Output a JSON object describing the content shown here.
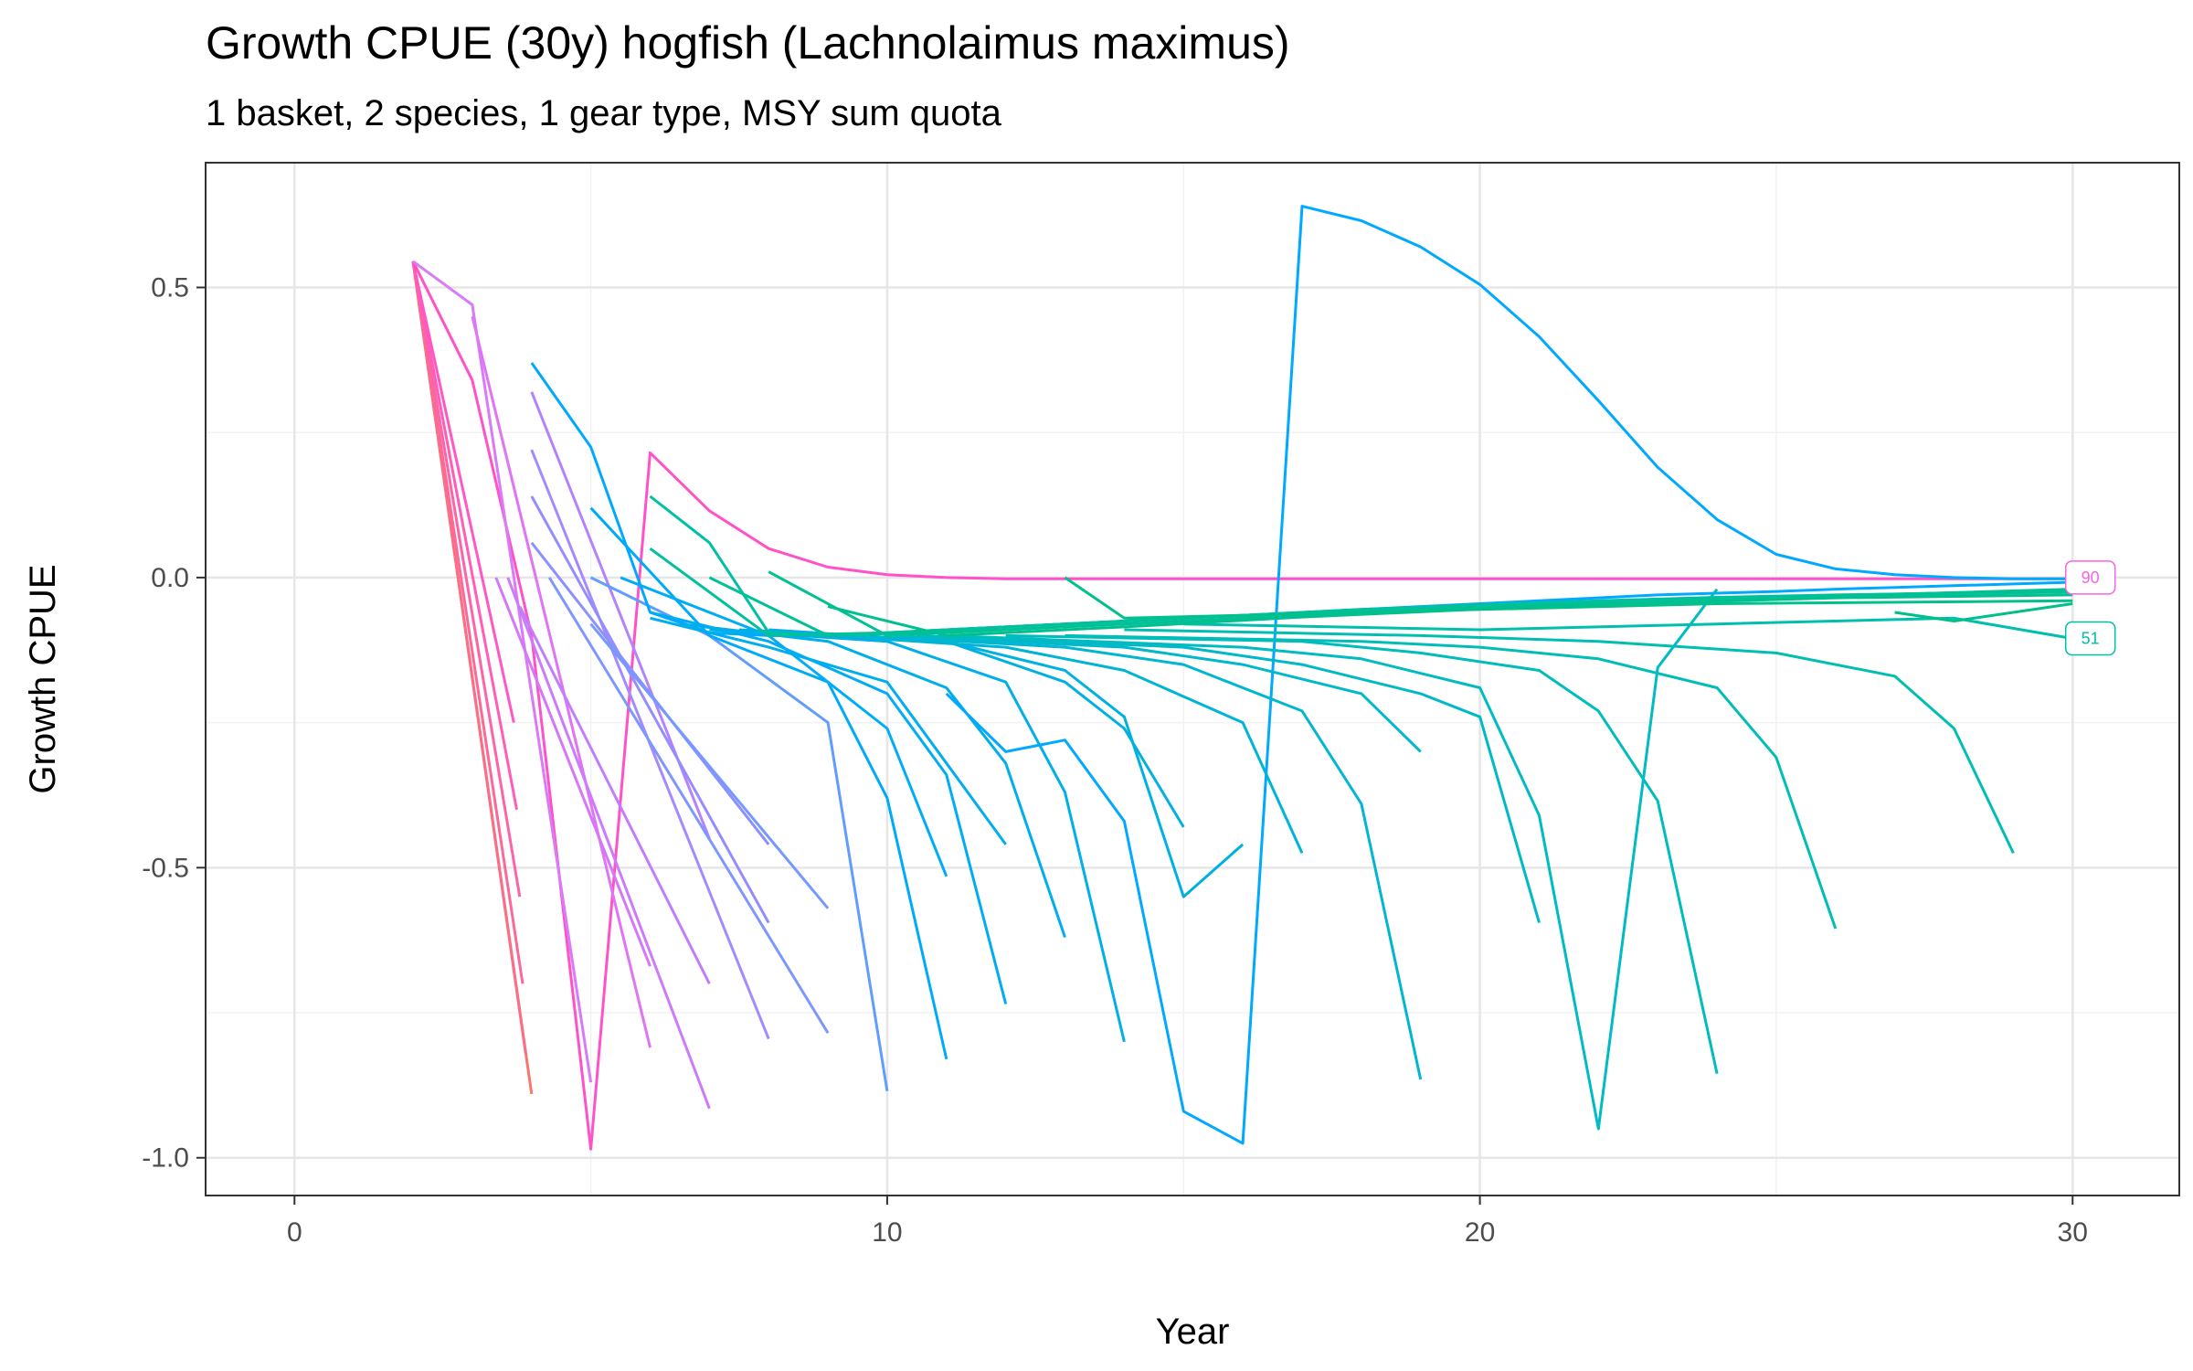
{
  "chart_data": {
    "type": "line",
    "title": "Growth CPUE (30y) hogfish (Lachnolaimus maximus)",
    "subtitle": "1 basket, 2 species, 1 gear type, MSY sum quota",
    "xlabel": "Year",
    "ylabel": "Growth CPUE",
    "xlim": [
      -1.5,
      31.8
    ],
    "ylim": [
      -1.065,
      0.715
    ],
    "x_ticks": [
      0,
      10,
      20,
      30
    ],
    "x_tick_labels": [
      "0",
      "10",
      "20",
      "30"
    ],
    "y_ticks": [
      -1.0,
      -0.5,
      0.0,
      0.5
    ],
    "y_tick_labels": [
      "-1.0",
      "-0.5",
      "0.0",
      "0.5"
    ],
    "grid": true,
    "legend": "none",
    "colors": {
      "pink": "#F564E3",
      "magenta": "#FF52C8",
      "red": "#F8766D",
      "violet": "#C77CFF",
      "periwinkle": "#8F8EFF",
      "blue": "#00A9FF",
      "cyan": "#00BCD8",
      "teal": "#00BFA5",
      "green": "#00C094"
    },
    "end_labels": [
      {
        "text": "90",
        "x": 30.3,
        "y": 0.0,
        "color": "#F564E3"
      },
      {
        "text": "51",
        "x": 30.3,
        "y": -0.105,
        "color": "#00BFA5"
      }
    ],
    "series": [
      {
        "color": "#F8766D",
        "x": [
          2,
          4
        ],
        "y": [
          0.545,
          -0.89
        ]
      },
      {
        "color": "#FA6E86",
        "x": [
          2,
          3.9
        ],
        "y": [
          0.545,
          -0.82
        ]
      },
      {
        "color": "#FB6A96",
        "x": [
          2,
          3.85
        ],
        "y": [
          0.545,
          -0.7
        ]
      },
      {
        "color": "#FD64A8",
        "x": [
          2,
          3.8
        ],
        "y": [
          0.545,
          -0.55
        ]
      },
      {
        "color": "#FF5DB8",
        "x": [
          2,
          3.75
        ],
        "y": [
          0.545,
          -0.4
        ]
      },
      {
        "color": "#FF58C4",
        "x": [
          2,
          3.7
        ],
        "y": [
          0.545,
          -0.25
        ]
      },
      {
        "color": "#FF52C8",
        "x": [
          2,
          3,
          4,
          5,
          6,
          7,
          8,
          9,
          10,
          11,
          12,
          30
        ],
        "y": [
          0.545,
          0.34,
          -0.1,
          -0.985,
          0.215,
          0.115,
          0.05,
          0.018,
          0.005,
          0.0,
          -0.002,
          -0.002
        ]
      },
      {
        "color": "#D97AF7",
        "x": [
          2,
          3,
          5
        ],
        "y": [
          0.545,
          0.47,
          -0.87
        ]
      },
      {
        "color": "#DF74F5",
        "x": [
          3,
          6
        ],
        "y": [
          0.45,
          -0.81
        ]
      },
      {
        "color": "#D478F8",
        "x": [
          3.4,
          6
        ],
        "y": [
          0.0,
          -0.67
        ]
      },
      {
        "color": "#CC7BFA",
        "x": [
          3.6,
          7
        ],
        "y": [
          0.0,
          -0.915
        ]
      },
      {
        "color": "#C17EFC",
        "x": [
          3.8,
          7
        ],
        "y": [
          -0.05,
          -0.7
        ]
      },
      {
        "color": "#B383FE",
        "x": [
          4,
          7
        ],
        "y": [
          0.32,
          -0.45
        ]
      },
      {
        "color": "#A48AFF",
        "x": [
          4,
          8
        ],
        "y": [
          0.22,
          -0.795
        ]
      },
      {
        "color": "#958DFF",
        "x": [
          4,
          8
        ],
        "y": [
          0.14,
          -0.595
        ]
      },
      {
        "color": "#8C90FF",
        "x": [
          4,
          8
        ],
        "y": [
          0.06,
          -0.46
        ]
      },
      {
        "color": "#7F96FF",
        "x": [
          4.3,
          9
        ],
        "y": [
          0.0,
          -0.785
        ]
      },
      {
        "color": "#7599FF",
        "x": [
          5,
          9
        ],
        "y": [
          -0.08,
          -0.57
        ]
      },
      {
        "color": "#619CFF",
        "x": [
          5,
          7,
          9,
          10
        ],
        "y": [
          0.0,
          -0.1,
          -0.25,
          -0.885
        ]
      },
      {
        "color": "#00A9FF",
        "x": [
          4,
          5,
          6,
          7,
          8,
          9,
          10,
          11,
          12,
          13,
          14,
          15,
          16,
          17,
          18,
          19,
          20,
          21,
          22,
          23,
          24,
          25,
          26,
          27,
          28,
          29,
          30
        ],
        "y": [
          0.37,
          0.225,
          -0.06,
          -0.095,
          -0.1,
          -0.1,
          -0.095,
          -0.09,
          -0.085,
          -0.08,
          -0.075,
          -0.07,
          -0.065,
          -0.06,
          -0.055,
          -0.05,
          -0.045,
          -0.04,
          -0.035,
          -0.03,
          -0.027,
          -0.024,
          -0.02,
          -0.017,
          -0.014,
          -0.011,
          -0.008
        ]
      },
      {
        "color": "#00AAFB",
        "x": [
          5,
          7,
          9,
          10,
          11
        ],
        "y": [
          0.12,
          -0.1,
          -0.18,
          -0.38,
          -0.83
        ]
      },
      {
        "color": "#00ABF7",
        "x": [
          5.5,
          8,
          10,
          11
        ],
        "y": [
          0.0,
          -0.1,
          -0.26,
          -0.515
        ]
      },
      {
        "color": "#00ACF3",
        "x": [
          6,
          8,
          10,
          11,
          12
        ],
        "y": [
          -0.06,
          -0.11,
          -0.2,
          -0.34,
          -0.735
        ]
      },
      {
        "color": "#00ADEF",
        "x": [
          6,
          8,
          10,
          12
        ],
        "y": [
          -0.07,
          -0.12,
          -0.18,
          -0.46
        ]
      },
      {
        "color": "#00AEEB",
        "x": [
          6.5,
          9,
          11,
          12,
          13
        ],
        "y": [
          -0.08,
          -0.11,
          -0.19,
          -0.32,
          -0.62
        ]
      },
      {
        "color": "#00AFE7",
        "x": [
          7,
          10,
          12,
          13,
          14
        ],
        "y": [
          -0.09,
          -0.11,
          -0.18,
          -0.37,
          -0.8
        ]
      },
      {
        "color": "#00B0E3",
        "x": [
          7.5,
          11,
          13,
          14,
          15
        ],
        "y": [
          -0.09,
          -0.11,
          -0.18,
          -0.26,
          -0.43
        ]
      },
      {
        "color": "#00B1DF",
        "x": [
          8,
          11,
          13,
          14,
          15,
          16
        ],
        "y": [
          -0.09,
          -0.11,
          -0.16,
          -0.24,
          -0.55,
          -0.46
        ]
      },
      {
        "color": "#00A9FF",
        "x": [
          11,
          12,
          13,
          14,
          15,
          16,
          17,
          18,
          19,
          20,
          21,
          22,
          23,
          24,
          25,
          26,
          27,
          28,
          29,
          30
        ],
        "y": [
          -0.2,
          -0.3,
          -0.28,
          -0.42,
          -0.92,
          -0.975,
          0.64,
          0.615,
          0.57,
          0.505,
          0.415,
          0.305,
          0.19,
          0.1,
          0.04,
          0.015,
          0.005,
          0.0,
          -0.002,
          -0.002
        ]
      },
      {
        "color": "#00B4D6",
        "x": [
          9,
          12,
          14,
          16,
          17
        ],
        "y": [
          -0.1,
          -0.12,
          -0.16,
          -0.25,
          -0.475
        ]
      },
      {
        "color": "#00B6D0",
        "x": [
          9.5,
          13,
          15,
          17,
          18,
          19
        ],
        "y": [
          -0.1,
          -0.12,
          -0.15,
          -0.23,
          -0.39,
          -0.865
        ]
      },
      {
        "color": "#00B8CB",
        "x": [
          10,
          14,
          16,
          18,
          19
        ],
        "y": [
          -0.1,
          -0.12,
          -0.15,
          -0.2,
          -0.3
        ]
      },
      {
        "color": "#00B9C6",
        "x": [
          10.5,
          15,
          17,
          19,
          20,
          21
        ],
        "y": [
          -0.1,
          -0.12,
          -0.15,
          -0.2,
          -0.24,
          -0.595
        ]
      },
      {
        "color": "#00BBC2",
        "x": [
          11,
          16,
          18,
          20,
          21,
          22,
          23,
          24
        ],
        "y": [
          -0.1,
          -0.12,
          -0.14,
          -0.19,
          -0.41,
          -0.95,
          -0.155,
          -0.02
        ]
      },
      {
        "color": "#00BCBD",
        "x": [
          12,
          17,
          19,
          21,
          22,
          23,
          24
        ],
        "y": [
          -0.1,
          -0.11,
          -0.13,
          -0.16,
          -0.23,
          -0.385,
          -0.855
        ]
      },
      {
        "color": "#00BDB8",
        "x": [
          13,
          18,
          20,
          22,
          24,
          25,
          26
        ],
        "y": [
          -0.1,
          -0.11,
          -0.12,
          -0.14,
          -0.19,
          -0.31,
          -0.605
        ]
      },
      {
        "color": "#00BEB2",
        "x": [
          14,
          19,
          22,
          25,
          27,
          28,
          29
        ],
        "y": [
          -0.09,
          -0.1,
          -0.11,
          -0.13,
          -0.17,
          -0.26,
          -0.475
        ]
      },
      {
        "color": "#00BFAC",
        "x": [
          15,
          20,
          24,
          28,
          30
        ],
        "y": [
          -0.08,
          -0.09,
          -0.08,
          -0.07,
          -0.105
        ]
      },
      {
        "color": "#00BFA5",
        "x": [
          6,
          7,
          8,
          9,
          10,
          12,
          14,
          16,
          18,
          20,
          22,
          24,
          26,
          28,
          30
        ],
        "y": [
          0.14,
          0.06,
          -0.095,
          -0.1,
          -0.095,
          -0.085,
          -0.075,
          -0.065,
          -0.055,
          -0.047,
          -0.04,
          -0.034,
          -0.03,
          -0.027,
          -0.024
        ]
      },
      {
        "color": "#00C09E",
        "x": [
          6,
          8,
          10,
          13,
          16,
          20,
          24,
          30
        ],
        "y": [
          0.05,
          -0.1,
          -0.095,
          -0.08,
          -0.065,
          -0.048,
          -0.035,
          -0.022
        ]
      },
      {
        "color": "#00C098",
        "x": [
          7,
          9,
          12,
          15,
          19,
          23,
          27,
          30
        ],
        "y": [
          0.0,
          -0.1,
          -0.09,
          -0.075,
          -0.058,
          -0.042,
          -0.03,
          -0.025
        ]
      },
      {
        "color": "#00C094",
        "x": [
          8,
          10,
          13,
          16,
          20,
          25,
          30
        ],
        "y": [
          0.01,
          -0.1,
          -0.085,
          -0.07,
          -0.052,
          -0.035,
          -0.02
        ]
      },
      {
        "color": "#00C08F",
        "x": [
          9,
          11,
          14,
          17,
          21,
          26,
          30
        ],
        "y": [
          -0.05,
          -0.1,
          -0.085,
          -0.068,
          -0.05,
          -0.035,
          -0.03
        ]
      },
      {
        "color": "#00C08B",
        "x": [
          13,
          14,
          18,
          24,
          30
        ],
        "y": [
          0.0,
          -0.07,
          -0.06,
          -0.045,
          -0.04
        ]
      },
      {
        "color": "#00C087",
        "x": [
          27,
          28,
          30
        ],
        "y": [
          -0.06,
          -0.075,
          -0.045
        ]
      }
    ]
  }
}
